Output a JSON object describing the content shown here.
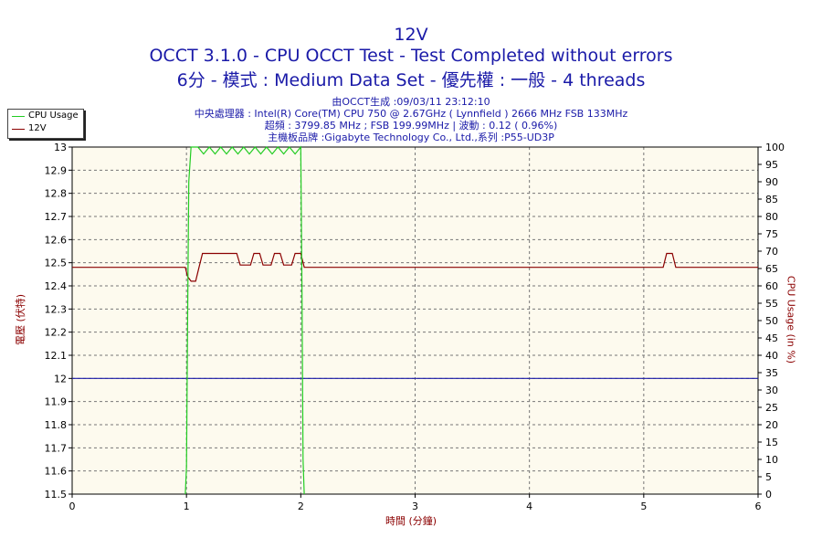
{
  "header": {
    "title": "12V",
    "subtitle": "OCCT 3.1.0 - CPU OCCT Test - Test Completed without errors",
    "config": "6分 - 模式 : Medium Data Set - 優先權 : 一般 - 4 threads",
    "generated": "由OCCT生成 :09/03/11 23:12:10",
    "cpu": "中央處理器 : Intel(R) Core(TM) CPU 750 @ 2.67GHz ( Lynnfield ) 2666 MHz FSB 133MHz",
    "freq": "超頻 : 3799.85 MHz ; FSB 199.99MHz | 波動 : 0.12 ( 0.96%)",
    "board": "主機板品牌 :Gigabyte Technology Co., Ltd.,系列 :P55-UD3P"
  },
  "legend": [
    {
      "label": "CPU Usage",
      "color": "#22cc22"
    },
    {
      "label": "12V",
      "color": "#8b0000"
    }
  ],
  "colors": {
    "plot_bg": "#fdfaee",
    "grid": "#777777",
    "reference": "#1a1aa8",
    "axis_text": "#8b0000"
  },
  "chart_data": {
    "type": "line",
    "xlabel": "時間 (分鐘)",
    "ylabel_left": "電壓 (伏特)",
    "ylabel_right": "CPU Usage (in %)",
    "xlim": [
      0,
      6
    ],
    "ylim_left": [
      11.5,
      13
    ],
    "ylim_right": [
      0,
      100
    ],
    "x_ticks": [
      "0",
      "1",
      "2",
      "3",
      "4",
      "5",
      "6"
    ],
    "y_ticks_left": [
      "11.5",
      "11.6",
      "11.7",
      "11.8",
      "11.9",
      "12",
      "12.1",
      "12.2",
      "12.3",
      "12.4",
      "12.5",
      "12.6",
      "12.7",
      "12.8",
      "12.9",
      "13"
    ],
    "y_ticks_right": [
      "0",
      "5",
      "10",
      "15",
      "20",
      "25",
      "30",
      "35",
      "40",
      "45",
      "50",
      "55",
      "60",
      "65",
      "70",
      "75",
      "80",
      "85",
      "90",
      "95",
      "100"
    ],
    "grid": true,
    "reference_line": 12,
    "series": [
      {
        "name": "12V",
        "axis": "left",
        "points": [
          [
            0,
            12.48
          ],
          [
            0.99,
            12.48
          ],
          [
            1.01,
            12.44
          ],
          [
            1.04,
            12.42
          ],
          [
            1.08,
            12.42
          ],
          [
            1.11,
            12.48
          ],
          [
            1.14,
            12.54
          ],
          [
            1.18,
            12.54
          ],
          [
            1.44,
            12.54
          ],
          [
            1.47,
            12.49
          ],
          [
            1.56,
            12.49
          ],
          [
            1.59,
            12.54
          ],
          [
            1.64,
            12.54
          ],
          [
            1.67,
            12.49
          ],
          [
            1.74,
            12.49
          ],
          [
            1.77,
            12.54
          ],
          [
            1.82,
            12.54
          ],
          [
            1.85,
            12.49
          ],
          [
            1.92,
            12.49
          ],
          [
            1.95,
            12.54
          ],
          [
            2.0,
            12.54
          ],
          [
            2.03,
            12.48
          ],
          [
            5.17,
            12.48
          ],
          [
            5.2,
            12.54
          ],
          [
            5.25,
            12.54
          ],
          [
            5.28,
            12.48
          ],
          [
            6,
            12.48
          ]
        ]
      },
      {
        "name": "CPU Usage",
        "axis": "right",
        "points": [
          [
            0.99,
            0
          ],
          [
            1.0,
            8
          ],
          [
            1.01,
            50
          ],
          [
            1.02,
            90
          ],
          [
            1.04,
            100
          ],
          [
            1.1,
            100
          ],
          [
            1.15,
            98
          ],
          [
            1.2,
            100
          ],
          [
            1.25,
            98
          ],
          [
            1.3,
            100
          ],
          [
            1.35,
            98
          ],
          [
            1.4,
            100
          ],
          [
            1.45,
            98
          ],
          [
            1.5,
            100
          ],
          [
            1.55,
            98
          ],
          [
            1.6,
            100
          ],
          [
            1.65,
            98
          ],
          [
            1.7,
            100
          ],
          [
            1.75,
            98
          ],
          [
            1.8,
            100
          ],
          [
            1.85,
            98
          ],
          [
            1.9,
            100
          ],
          [
            1.95,
            98
          ],
          [
            2.0,
            100
          ],
          [
            2.01,
            60
          ],
          [
            2.02,
            10
          ],
          [
            2.03,
            0
          ]
        ]
      }
    ]
  }
}
